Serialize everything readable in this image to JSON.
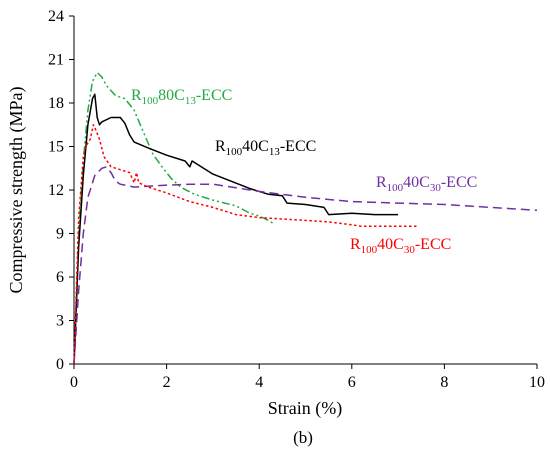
{
  "chart_data": {
    "type": "line",
    "xlabel": "Strain (%)",
    "ylabel": "Compressive strength (MPa)",
    "panel_label": "(b)",
    "xlim": [
      0,
      10
    ],
    "ylim": [
      0,
      24
    ],
    "xticks": [
      0,
      2,
      4,
      6,
      8,
      10
    ],
    "yticks": [
      0,
      3,
      6,
      9,
      12,
      15,
      18,
      21,
      24
    ],
    "grid": false,
    "legend": "inline labels",
    "series": [
      {
        "name": "R100 80C13-ECC",
        "label": {
          "base": "R",
          "sub1": "100",
          "mid": "80C",
          "sub2": "13",
          "tail": "-ECC"
        },
        "color": "#22aa44",
        "dash": "dash-dot-dot",
        "points": [
          [
            0,
            0
          ],
          [
            0.05,
            4
          ],
          [
            0.1,
            9
          ],
          [
            0.2,
            14
          ],
          [
            0.3,
            17.5
          ],
          [
            0.4,
            19.5
          ],
          [
            0.5,
            20.1
          ],
          [
            0.6,
            19.8
          ],
          [
            0.7,
            19.2
          ],
          [
            0.9,
            18.5
          ],
          [
            1.1,
            18.3
          ],
          [
            1.3,
            17.5
          ],
          [
            1.5,
            16.0
          ],
          [
            1.7,
            14.5
          ],
          [
            1.9,
            13.6
          ],
          [
            2.1,
            12.8
          ],
          [
            2.3,
            12.2
          ],
          [
            2.6,
            11.7
          ],
          [
            3.0,
            11.3
          ],
          [
            3.5,
            10.9
          ],
          [
            3.8,
            10.4
          ],
          [
            4.0,
            10.2
          ],
          [
            4.2,
            9.9
          ],
          [
            4.3,
            9.7
          ]
        ]
      },
      {
        "name": "R100 40C13-ECC",
        "label": {
          "base": "R",
          "sub1": "100",
          "mid": "40C",
          "sub2": "13",
          "tail": "-ECC"
        },
        "color": "#000000",
        "dash": "solid",
        "points": [
          [
            0,
            0
          ],
          [
            0.05,
            4
          ],
          [
            0.1,
            8
          ],
          [
            0.2,
            13
          ],
          [
            0.3,
            16.5
          ],
          [
            0.4,
            18.3
          ],
          [
            0.45,
            18.6
          ],
          [
            0.5,
            17.0
          ],
          [
            0.55,
            16.5
          ],
          [
            0.6,
            16.7
          ],
          [
            0.8,
            17.0
          ],
          [
            1.0,
            17.0
          ],
          [
            1.1,
            16.6
          ],
          [
            1.2,
            15.8
          ],
          [
            1.3,
            15.3
          ],
          [
            1.6,
            14.9
          ],
          [
            2.0,
            14.4
          ],
          [
            2.4,
            14.0
          ],
          [
            2.5,
            13.6
          ],
          [
            2.55,
            14.0
          ],
          [
            3.0,
            13.1
          ],
          [
            3.4,
            12.6
          ],
          [
            3.8,
            12.1
          ],
          [
            4.2,
            11.7
          ],
          [
            4.5,
            11.6
          ],
          [
            4.6,
            11.1
          ],
          [
            5.0,
            11.0
          ],
          [
            5.4,
            10.8
          ],
          [
            5.5,
            10.3
          ],
          [
            6.0,
            10.4
          ],
          [
            6.5,
            10.3
          ],
          [
            7.0,
            10.3
          ]
        ]
      },
      {
        "name": "R100 40C30-ECC",
        "label": {
          "base": "R",
          "sub1": "100",
          "mid": "40C",
          "sub2": "30",
          "tail": "-ECC"
        },
        "color": "#7030a0",
        "dash": "dashed",
        "points": [
          [
            0,
            0
          ],
          [
            0.05,
            2.5
          ],
          [
            0.1,
            5
          ],
          [
            0.2,
            9
          ],
          [
            0.3,
            11.5
          ],
          [
            0.45,
            13.0
          ],
          [
            0.6,
            13.5
          ],
          [
            0.7,
            13.6
          ],
          [
            0.8,
            13.2
          ],
          [
            0.9,
            12.6
          ],
          [
            1.0,
            12.4
          ],
          [
            1.3,
            12.2
          ],
          [
            1.8,
            12.3
          ],
          [
            2.5,
            12.4
          ],
          [
            3.0,
            12.4
          ],
          [
            4.0,
            11.9
          ],
          [
            5.0,
            11.5
          ],
          [
            6.0,
            11.2
          ],
          [
            7.0,
            11.1
          ],
          [
            8.0,
            11.0
          ],
          [
            9.0,
            10.8
          ],
          [
            10.0,
            10.6
          ]
        ]
      },
      {
        "name": "R100 40C30-ECC",
        "label": {
          "base": "R",
          "sub1": "100",
          "mid": "40C",
          "sub2": "30",
          "tail": "-ECC"
        },
        "color": "#ff0000",
        "dash": "dotted",
        "points": [
          [
            0,
            0
          ],
          [
            0.05,
            5
          ],
          [
            0.1,
            10
          ],
          [
            0.2,
            14.3
          ],
          [
            0.25,
            15.0
          ],
          [
            0.35,
            15.5
          ],
          [
            0.42,
            16.5
          ],
          [
            0.45,
            16.3
          ],
          [
            0.55,
            15.5
          ],
          [
            0.65,
            14.3
          ],
          [
            0.8,
            13.6
          ],
          [
            1.0,
            13.4
          ],
          [
            1.2,
            13.2
          ],
          [
            1.3,
            12.5
          ],
          [
            1.35,
            13.2
          ],
          [
            1.4,
            12.5
          ],
          [
            1.6,
            12.2
          ],
          [
            2.0,
            11.8
          ],
          [
            2.5,
            11.2
          ],
          [
            3.0,
            10.8
          ],
          [
            3.5,
            10.3
          ],
          [
            4.0,
            10.1
          ],
          [
            5.0,
            9.9
          ],
          [
            5.5,
            9.8
          ],
          [
            6.0,
            9.6
          ],
          [
            6.2,
            9.5
          ],
          [
            7.0,
            9.5
          ],
          [
            7.4,
            9.5
          ]
        ]
      }
    ]
  }
}
